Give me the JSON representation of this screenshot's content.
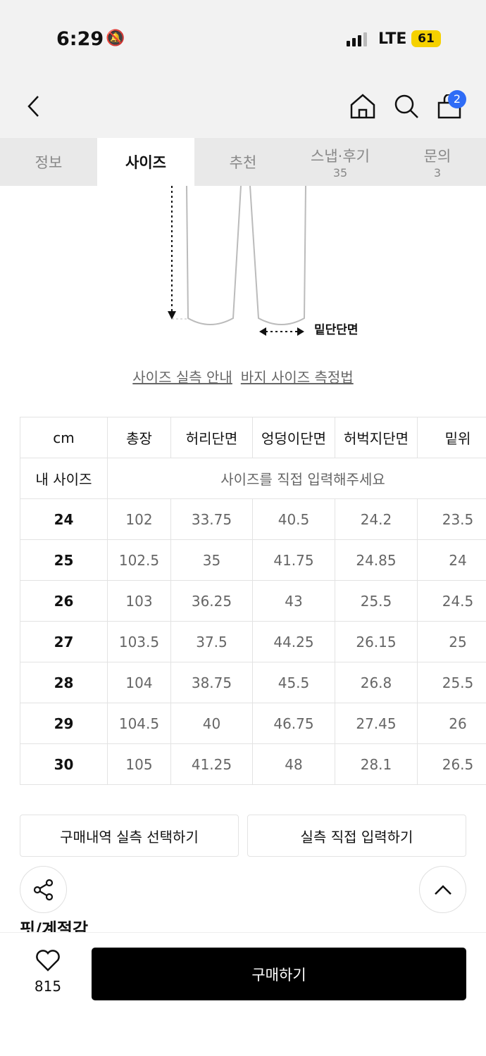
{
  "status": {
    "time": "6:29",
    "network": "LTE",
    "battery": "61"
  },
  "nav": {
    "cart_count": "2"
  },
  "tabs": [
    {
      "label": "정보"
    },
    {
      "label": "사이즈",
      "active": true
    },
    {
      "label": "추천"
    },
    {
      "label": "스냅·후기",
      "count": "35"
    },
    {
      "label": "문의",
      "count": "3"
    }
  ],
  "diagram": {
    "hem_label": "밑단단면"
  },
  "links": [
    "사이즈 실측 안내",
    "바지 사이즈 측정법"
  ],
  "table": {
    "headers": [
      "cm",
      "총장",
      "허리단면",
      "엉덩이단면",
      "허벅지단면",
      "밑위"
    ],
    "my_size_label": "내 사이즈",
    "my_size_placeholder": "사이즈를 직접 입력해주세요",
    "rows": [
      [
        "24",
        "102",
        "33.75",
        "40.5",
        "24.2",
        "23.5"
      ],
      [
        "25",
        "102.5",
        "35",
        "41.75",
        "24.85",
        "24"
      ],
      [
        "26",
        "103",
        "36.25",
        "43",
        "25.5",
        "24.5"
      ],
      [
        "27",
        "103.5",
        "37.5",
        "44.25",
        "26.15",
        "25"
      ],
      [
        "28",
        "104",
        "38.75",
        "45.5",
        "26.8",
        "25.5"
      ],
      [
        "29",
        "104.5",
        "40",
        "46.75",
        "27.45",
        "26"
      ],
      [
        "30",
        "105",
        "41.25",
        "48",
        "28.1",
        "26.5"
      ]
    ]
  },
  "buttons": {
    "purchase_history": "구매내역 실측 선택하기",
    "direct_input": "실측 직접 입력하기"
  },
  "section_title": "핏/계절감",
  "bottom": {
    "likes": "815",
    "buy": "구매하기"
  }
}
